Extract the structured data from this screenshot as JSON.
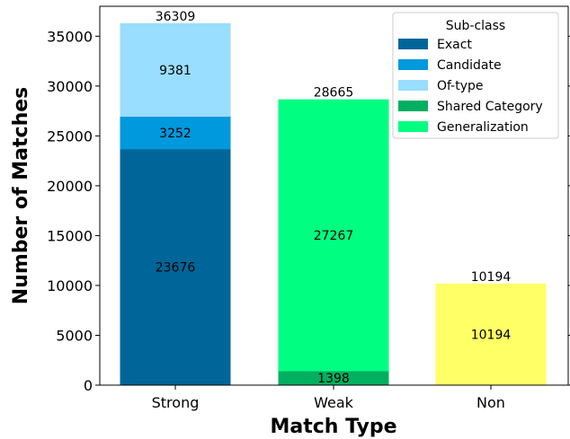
{
  "chart_data": {
    "type": "bar",
    "stacked": true,
    "categories": [
      "Strong",
      "Weak",
      "Non"
    ],
    "xlabel": "Match Type",
    "ylabel": "Number of Matches",
    "ylim": [
      0,
      38000
    ],
    "yticks": [
      0,
      5000,
      10000,
      15000,
      20000,
      25000,
      30000,
      35000
    ],
    "grid": false,
    "legend": {
      "title": "Sub-class",
      "placement": "top-right"
    },
    "series": [
      {
        "name": "Exact",
        "category": "Strong",
        "value": 23676,
        "color": "#006699"
      },
      {
        "name": "Candidate",
        "category": "Strong",
        "value": 3252,
        "color": "#0099dd"
      },
      {
        "name": "Of-type",
        "category": "Strong",
        "value": 9381,
        "color": "#99ddff"
      },
      {
        "name": "Shared Category",
        "category": "Weak",
        "value": 1398,
        "color": "#00b060"
      },
      {
        "name": "Generalization",
        "category": "Weak",
        "value": 27267,
        "color": "#00ff80"
      },
      {
        "name": "",
        "category": "Non",
        "value": 10194,
        "color": "#ffff66"
      }
    ],
    "totals": [
      36309,
      28665,
      10194
    ]
  }
}
